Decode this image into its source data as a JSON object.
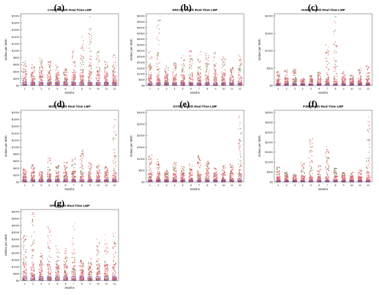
{
  "panels": [
    {
      "id": "a",
      "letter": "(a)",
      "title": "CAISO Month Real-Time LMP",
      "ylabel": "Dollars per MWh",
      "xlabel": "Months",
      "ticks": [
        "$0",
        "$200",
        "$400",
        "$600",
        "$800",
        "$1000",
        "$1200",
        "$1400",
        "$1600",
        "$1800",
        "$2000"
      ],
      "extremes": [
        700,
        600,
        800,
        700,
        650,
        500,
        1100,
        1400,
        2000,
        1000,
        700,
        900
      ],
      "baseline": 400
    },
    {
      "id": "b",
      "letter": "(b)",
      "title": "ERCOT Month Real-Time LMP",
      "ylabel": "Dollars per MWh",
      "xlabel": "Months",
      "ticks": [
        "$0",
        "$500",
        "$1000",
        "$1500",
        "$2000",
        "$2500",
        "$3000",
        "$3500",
        "$4000",
        "$4500",
        "$5000",
        "$5500",
        "$6000"
      ],
      "extremes": [
        3000,
        6000,
        1800,
        2000,
        2600,
        3000,
        3200,
        3000,
        3000,
        2500,
        1600,
        2600
      ],
      "baseline": 1000
    },
    {
      "id": "c",
      "letter": "(c)",
      "title": "ISONE Month Real-Time LMP",
      "ylabel": "Dollars per MWh",
      "xlabel": "Months",
      "ticks": [
        "$0",
        "$500",
        "$1000",
        "$1500",
        "$2000"
      ],
      "extremes": [
        400,
        450,
        500,
        200,
        300,
        400,
        1200,
        2200,
        400,
        300,
        500,
        600
      ],
      "baseline": 200
    },
    {
      "id": "d",
      "letter": "(d)",
      "title": "MISO Month Real-Time LMP",
      "ylabel": "Dollars per MWh",
      "xlabel": "Months",
      "ticks": [
        "$0",
        "$200",
        "$400",
        "$600",
        "$800",
        "$1000",
        "$1200",
        "$1400",
        "$1600",
        "$1800",
        "$2000"
      ],
      "extremes": [
        400,
        500,
        300,
        700,
        500,
        600,
        700,
        1000,
        600,
        500,
        500,
        1800
      ],
      "baseline": 300
    },
    {
      "id": "e",
      "letter": "(e)",
      "title": "NYISO Month Real-Time LMP",
      "ylabel": "Dollars per MWh",
      "xlabel": "Months",
      "ticks": [
        "$0",
        "$500",
        "$1000",
        "$1500",
        "$2000",
        "$2500",
        "$3000"
      ],
      "extremes": [
        1200,
        1000,
        500,
        900,
        700,
        800,
        1200,
        900,
        600,
        700,
        800,
        3000
      ],
      "baseline": 400
    },
    {
      "id": "f",
      "letter": "(f)",
      "title": "PJM Month Real-Time LMP",
      "ylabel": "Dollars per MWh",
      "xlabel": "Months",
      "ticks": [
        "$0",
        "$500",
        "$1000",
        "$1500",
        "$2000",
        "$2500",
        "$3000",
        "$3500"
      ],
      "extremes": [
        800,
        500,
        400,
        1000,
        2600,
        900,
        1800,
        700,
        500,
        500,
        600,
        3400
      ],
      "baseline": 300
    },
    {
      "id": "g",
      "letter": "(g)",
      "title": "SPP Month Real-Time LMP",
      "ylabel": "Dollars per MWh",
      "xlabel": "Months",
      "ticks": [
        "$0",
        "$500",
        "$1000",
        "$1500",
        "$2000",
        "$2500",
        "$3000",
        "$3500",
        "$4000",
        "$4500",
        "$5000"
      ],
      "extremes": [
        3500,
        5000,
        2000,
        4000,
        2500,
        2400,
        4200,
        1500,
        1600,
        3000,
        3500,
        3500
      ],
      "baseline": 1200
    }
  ],
  "month_labels": [
    "1",
    "2",
    "3",
    "4",
    "5",
    "6",
    "7",
    "8",
    "9",
    "10",
    "11",
    "12"
  ]
}
